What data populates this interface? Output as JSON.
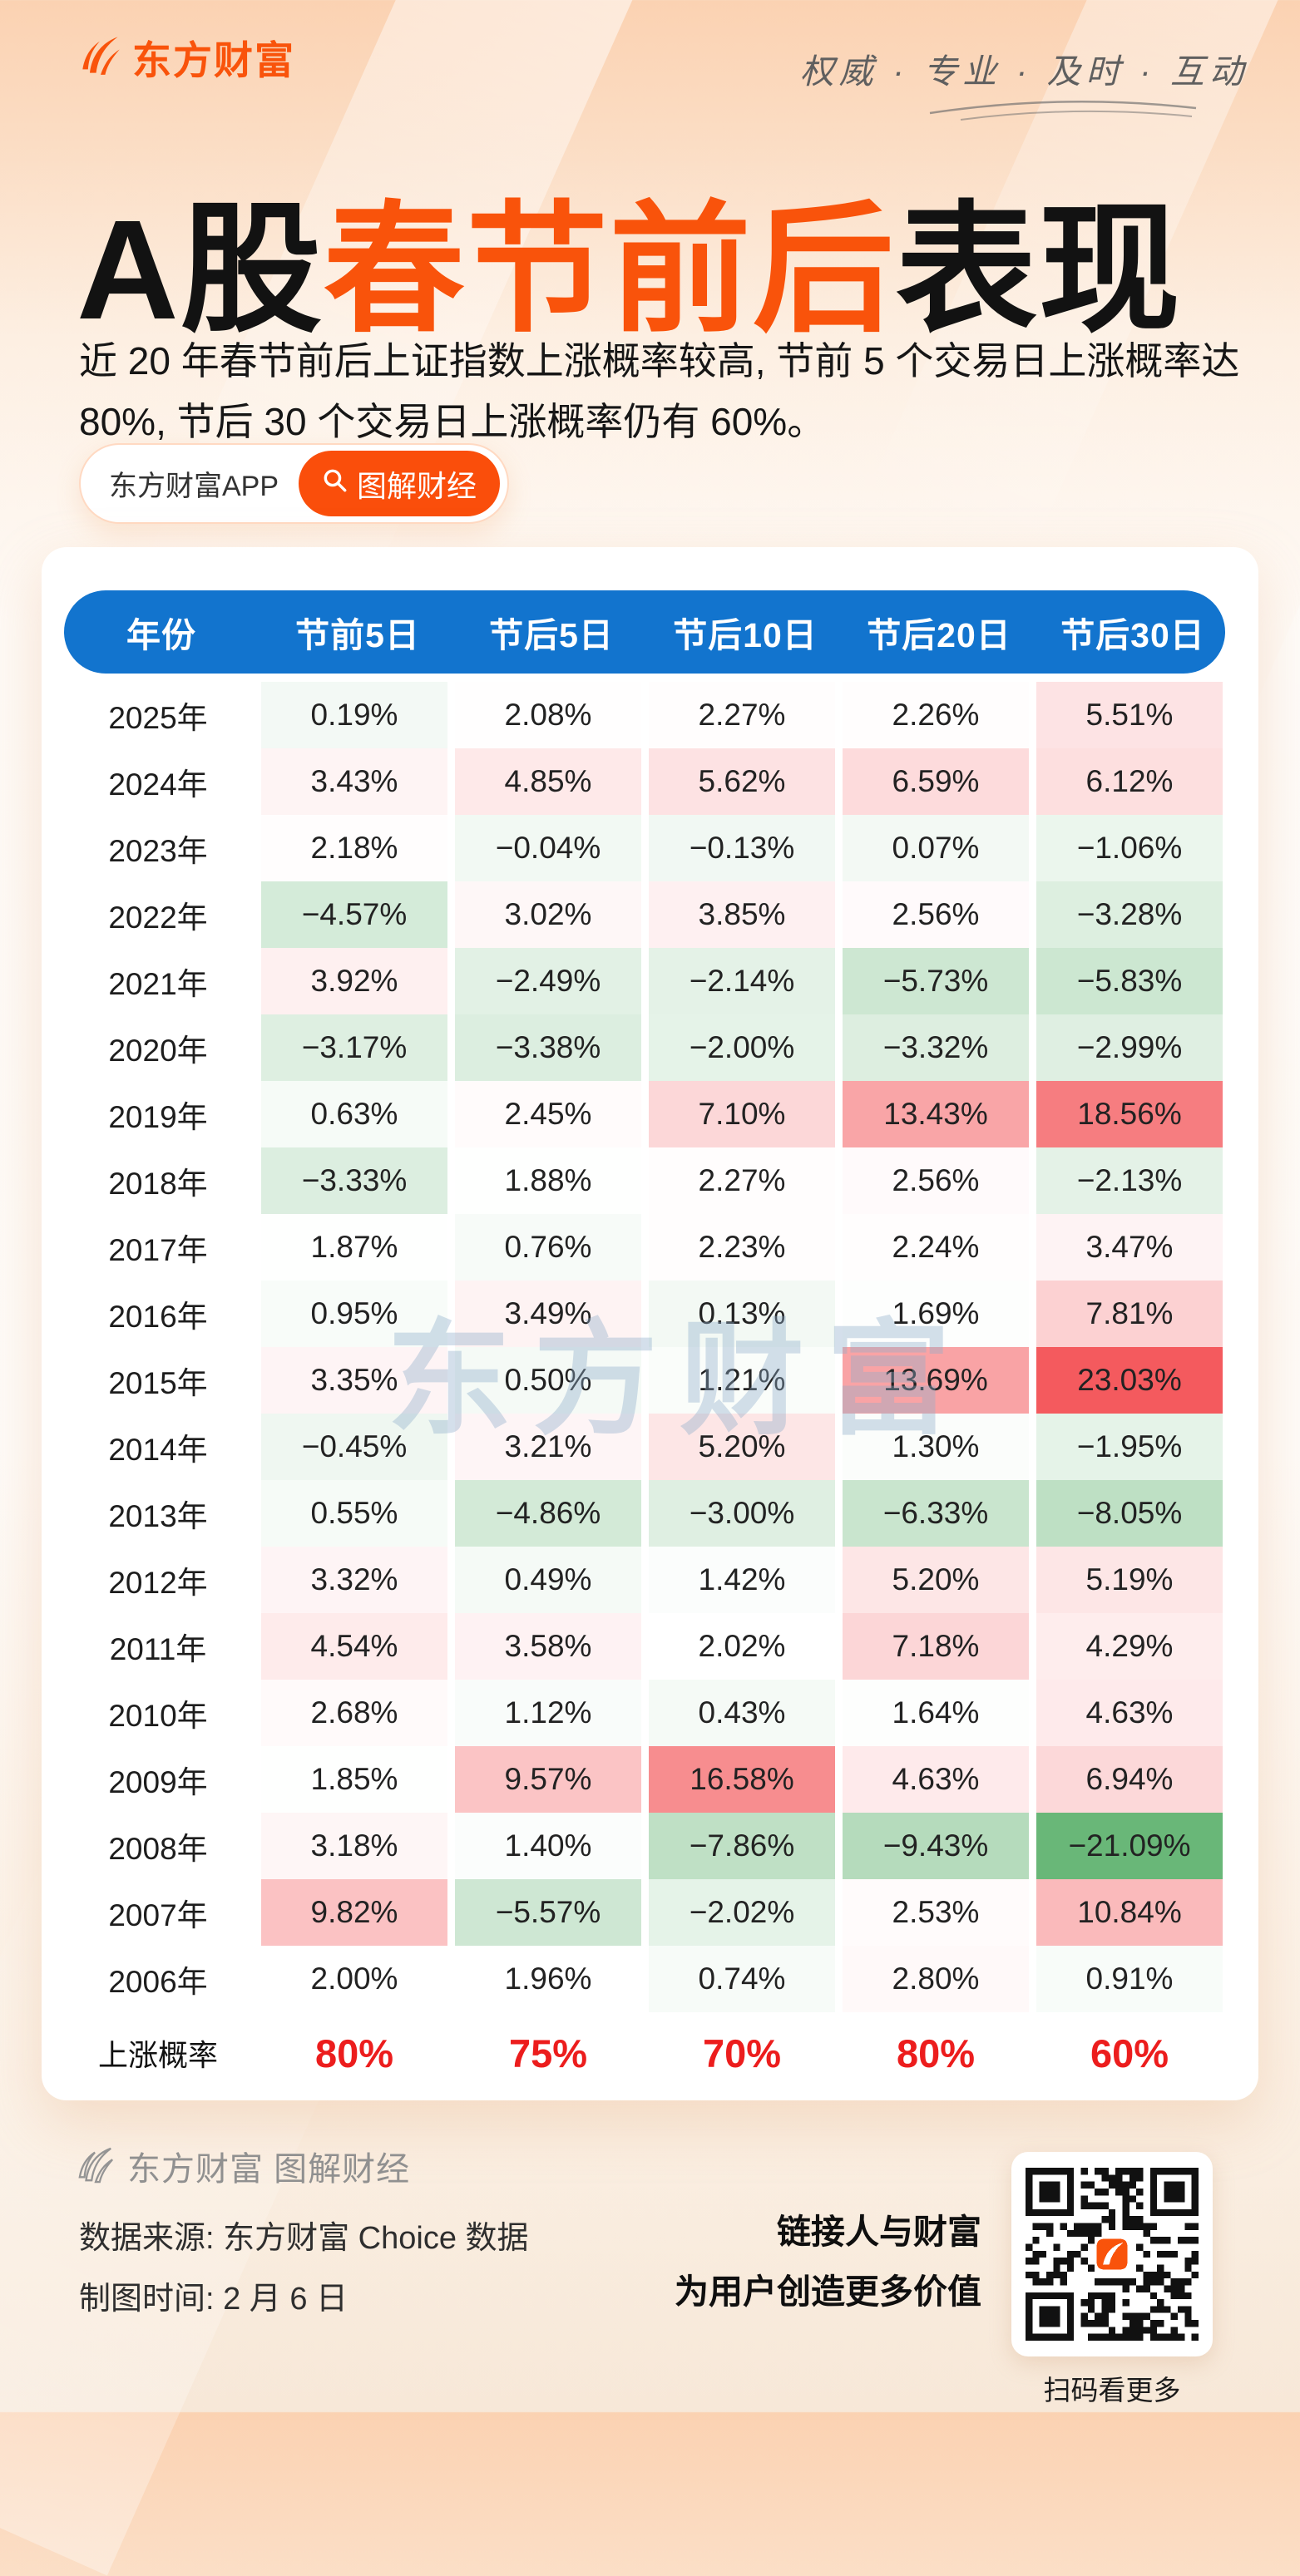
{
  "colors": {
    "accent_orange": "#F9530B",
    "header_blue": "#1274CE",
    "probability_red": "#EC1D1D",
    "heat_positive": "#F45A5E",
    "heat_negative": "#69B778",
    "heat_neutral": "#FFFFFF"
  },
  "brand": {
    "logo_text": "东方财富",
    "slogan": "权威 · 专业 · 及时 · 互动"
  },
  "title": {
    "prefix": "A股",
    "highlight": "春节前后",
    "suffix": "表现"
  },
  "intro": "近 20 年春节前后上证指数上涨概率较高, 节前 5 个交易日上涨概率达 80%, 节后 30 个交易日上涨概率仍有 60%。",
  "badges": {
    "app": "东方财富APP",
    "channel": "图解财经"
  },
  "watermark": "东方财富",
  "chart_data": {
    "type": "table",
    "title": "A股春节前后表现",
    "unit": "%",
    "columns": [
      "年份",
      "节前5日",
      "节后5日",
      "节后10日",
      "节后20日",
      "节后30日"
    ],
    "rows": [
      {
        "label": "2025年",
        "values": [
          0.19,
          2.08,
          2.27,
          2.26,
          5.51
        ]
      },
      {
        "label": "2024年",
        "values": [
          3.43,
          4.85,
          5.62,
          6.59,
          6.12
        ]
      },
      {
        "label": "2023年",
        "values": [
          2.18,
          -0.04,
          -0.13,
          0.07,
          -1.06
        ]
      },
      {
        "label": "2022年",
        "values": [
          -4.57,
          3.02,
          3.85,
          2.56,
          -3.28
        ]
      },
      {
        "label": "2021年",
        "values": [
          3.92,
          -2.49,
          -2.14,
          -5.73,
          -5.83
        ]
      },
      {
        "label": "2020年",
        "values": [
          -3.17,
          -3.38,
          -2.0,
          -3.32,
          -2.99
        ]
      },
      {
        "label": "2019年",
        "values": [
          0.63,
          2.45,
          7.1,
          13.43,
          18.56
        ]
      },
      {
        "label": "2018年",
        "values": [
          -3.33,
          1.88,
          2.27,
          2.56,
          -2.13
        ]
      },
      {
        "label": "2017年",
        "values": [
          1.87,
          0.76,
          2.23,
          2.24,
          3.47
        ]
      },
      {
        "label": "2016年",
        "values": [
          0.95,
          3.49,
          0.13,
          1.69,
          7.81
        ]
      },
      {
        "label": "2015年",
        "values": [
          3.35,
          0.5,
          1.21,
          13.69,
          23.03
        ]
      },
      {
        "label": "2014年",
        "values": [
          -0.45,
          3.21,
          5.2,
          1.3,
          -1.95
        ]
      },
      {
        "label": "2013年",
        "values": [
          0.55,
          -4.86,
          -3.0,
          -6.33,
          -8.05
        ]
      },
      {
        "label": "2012年",
        "values": [
          3.32,
          0.49,
          1.42,
          5.2,
          5.19
        ]
      },
      {
        "label": "2011年",
        "values": [
          4.54,
          3.58,
          2.02,
          7.18,
          4.29
        ]
      },
      {
        "label": "2010年",
        "values": [
          2.68,
          1.12,
          0.43,
          1.64,
          4.63
        ]
      },
      {
        "label": "2009年",
        "values": [
          1.85,
          9.57,
          16.58,
          4.63,
          6.94
        ]
      },
      {
        "label": "2008年",
        "values": [
          3.18,
          1.4,
          -7.86,
          -9.43,
          -21.09
        ]
      },
      {
        "label": "2007年",
        "values": [
          9.82,
          -5.57,
          -2.02,
          2.53,
          10.84
        ]
      },
      {
        "label": "2006年",
        "values": [
          2.0,
          1.96,
          0.74,
          2.8,
          0.91
        ]
      }
    ],
    "summary": {
      "label": "上涨概率",
      "values": [
        "80%",
        "75%",
        "70%",
        "80%",
        "60%"
      ]
    },
    "heatmap": {
      "style": "3-color value scale, midpoint = median of all values",
      "min_color": "#69B778",
      "mid_color": "#FFFFFF",
      "max_color": "#F45A5E"
    }
  },
  "footer": {
    "brand_line": "东方财富 图解财经",
    "source_line": "数据来源: 东方财富 Choice 数据",
    "date_line": "制图时间: 2 月 6 日",
    "slogan_line1": "链接人与财富",
    "slogan_line2": "为用户创造更多价值",
    "qr_caption": "扫码看更多"
  }
}
